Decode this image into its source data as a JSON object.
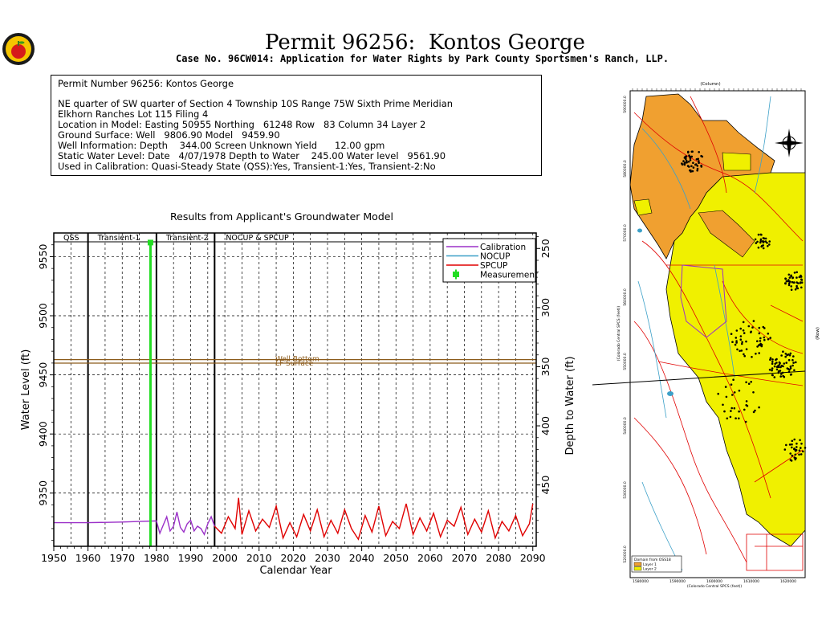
{
  "header": {
    "title": "Permit 96256:  Kontos George",
    "subtitle": "Case No. 96CW014: Application for Water Rights by Park County Sportsmen's Ranch, LLP."
  },
  "info": {
    "lines": [
      "Permit Number 96256: Kontos George",
      "",
      "NE quarter of SW quarter of Section 4 Township 10S Range 75W Sixth Prime Meridian",
      "Elkhorn Ranches Lot 115 Filing 4",
      "Location in Model: Easting 50955 Northing   61248 Row   83 Column 34 Layer 2",
      "Ground Surface: Well   9806.90 Model   9459.90",
      "Well Information: Depth    344.00 Screen Unknown Yield      12.00 gpm",
      "Static Water Level: Date   4/07/1978 Depth to Water    245.00 Water level   9561.90",
      "Used in Calibration: Quasi-Steady State (QSS):Yes, Transient-1:Yes, Transient-2:No"
    ]
  },
  "chart_data": {
    "type": "line",
    "title": "Results from Applicant's Groundwater Model",
    "xlabel": "Calendar Year",
    "ylabel": "Water Level (ft)",
    "y2label": "Depth to Water (ft)",
    "xlim": [
      1950,
      2091
    ],
    "ylim": [
      9305,
      9570
    ],
    "y2lim": [
      501.9,
      236.9
    ],
    "xticks": [
      1950,
      1960,
      1970,
      1980,
      1990,
      2000,
      2010,
      2020,
      2030,
      2040,
      2050,
      2060,
      2070,
      2080,
      2090
    ],
    "yticks": [
      9350,
      9400,
      9450,
      9500,
      9550
    ],
    "y2ticks": [
      250,
      300,
      350,
      400,
      450
    ],
    "periods": [
      {
        "label": "QSS",
        "start": 1950,
        "end": 1960
      },
      {
        "label": "Transient-1",
        "start": 1960,
        "end": 1980
      },
      {
        "label": "Transient-2",
        "start": 1980,
        "end": 1997
      },
      {
        "label": "NOCUP  &  SPCUP",
        "start": 1997,
        "end": 2091
      }
    ],
    "period_boundaries": [
      1960,
      1980,
      1997
    ],
    "reference_lines": [
      {
        "label": "Well Bottom",
        "value": 9462.9,
        "color": "#8B5A1A"
      },
      {
        "label": "LF Surface",
        "value": 9459.9,
        "color": "#8B5A1A"
      }
    ],
    "legend": {
      "position": "top-right",
      "entries": [
        {
          "label": "Calibration",
          "color": "#9B30C8"
        },
        {
          "label": "NOCUP",
          "color": "#3CA0C8"
        },
        {
          "label": "SPCUP",
          "color": "#E00000"
        },
        {
          "label": "Measurement",
          "color": "#22DD22"
        }
      ]
    },
    "series": [
      {
        "name": "Calibration",
        "color": "#9B30C8",
        "x": [
          1950,
          1960,
          1970,
          1975,
          1980,
          1981,
          1982,
          1983,
          1984,
          1985,
          1986,
          1987,
          1988,
          1989,
          1990,
          1991,
          1992,
          1993,
          1994,
          1995,
          1996,
          1997
        ],
        "y": [
          9325,
          9325,
          9325.5,
          9326,
          9326.5,
          9316,
          9323,
          9330,
          9318,
          9322,
          9334,
          9321,
          9317,
          9324,
          9327,
          9318,
          9322,
          9320,
          9315,
          9324,
          9330,
          9322
        ]
      },
      {
        "name": "SPCUP",
        "color": "#E00000",
        "x": [
          1997,
          1999,
          2001,
          2003,
          2004,
          2005,
          2007,
          2009,
          2011,
          2013,
          2015,
          2017,
          2019,
          2021,
          2023,
          2025,
          2027,
          2029,
          2031,
          2033,
          2035,
          2037,
          2039,
          2041,
          2043,
          2045,
          2047,
          2049,
          2051,
          2053,
          2055,
          2057,
          2059,
          2061,
          2063,
          2065,
          2067,
          2069,
          2071,
          2073,
          2075,
          2077,
          2079,
          2081,
          2083,
          2085,
          2087,
          2089,
          2090
        ],
        "y": [
          9322,
          9316,
          9330,
          9320,
          9346,
          9315,
          9335,
          9318,
          9328,
          9321,
          9339,
          9312,
          9325,
          9313,
          9332,
          9318,
          9336,
          9313,
          9327,
          9316,
          9336,
          9320,
          9311,
          9331,
          9317,
          9339,
          9314,
          9326,
          9320,
          9341,
          9315,
          9329,
          9318,
          9333,
          9313,
          9327,
          9322,
          9338,
          9315,
          9328,
          9317,
          9335,
          9312,
          9326,
          9318,
          9331,
          9314,
          9324,
          9341
        ]
      },
      {
        "name": "Measurement",
        "color": "#22DD22",
        "x": [
          1978.26
        ],
        "y": [
          9561.9
        ]
      }
    ]
  },
  "map": {
    "top_axis_label": "(Column)",
    "right_axis_label": "(Row)",
    "left_axis_label": "(Colorado Central SPCS (feet))",
    "bottom_axis_label": "(Colorado Central SPCS (feet))",
    "y_ticks": [
      "590000.0",
      "580000.0",
      "570000.0",
      "560000.0",
      "550000.0",
      "540000.0",
      "530000.0",
      "520000.0"
    ],
    "x_ticks": [
      "1580000",
      "1590000",
      "1600000",
      "1610000",
      "1620000"
    ],
    "legend_title": "Domain from OSS18",
    "legend_entries": [
      {
        "label": "Layer 1",
        "color": "#F0A030"
      },
      {
        "label": "Layer 2",
        "color": "#F0F000"
      }
    ],
    "colors": {
      "layer1": "#F0A030",
      "layer2": "#F0F000",
      "road": "#E00000",
      "stream": "#3CA0C8",
      "well": "#000000"
    }
  }
}
